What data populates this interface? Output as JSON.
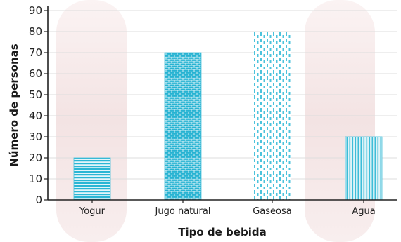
{
  "chart_data": {
    "type": "bar",
    "title": "",
    "xlabel": "Tipo de bebida",
    "ylabel": "Número de personas",
    "categories": [
      "Yogur",
      "Jugo natural",
      "Gaseosa",
      "Agua"
    ],
    "values": [
      20,
      70,
      80,
      30
    ],
    "ylim": [
      0,
      90
    ],
    "yticks": [
      0,
      10,
      20,
      30,
      40,
      50,
      60,
      70,
      80,
      90
    ],
    "grid": true,
    "legend": "none"
  },
  "colors": {
    "bar": "#29b5d3",
    "bar_light": "#a8e1ee",
    "axis": "#222222",
    "grid": "#dddddd",
    "band": "#f6ebeb"
  }
}
